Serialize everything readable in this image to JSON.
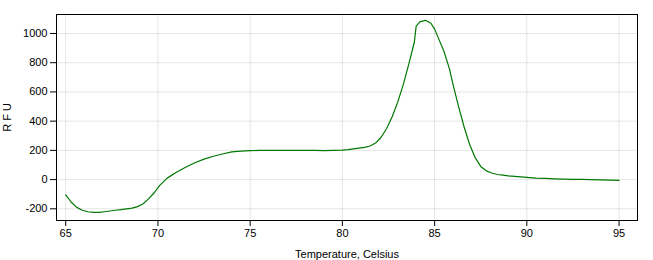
{
  "chart_data": {
    "type": "line",
    "xlabel": "Temperature, Celsius",
    "ylabel": "R F U",
    "x": [
      65.0,
      65.3,
      65.6,
      65.9,
      66.2,
      66.5,
      66.8,
      67.1,
      67.4,
      67.7,
      68.0,
      68.3,
      68.6,
      68.9,
      69.2,
      69.5,
      69.8,
      70.1,
      70.5,
      71.0,
      71.5,
      72.0,
      72.5,
      73.0,
      73.5,
      74.0,
      74.5,
      75.0,
      75.5,
      76.0,
      76.5,
      77.0,
      77.5,
      78.0,
      78.5,
      79.0,
      79.5,
      80.0,
      80.3,
      80.6,
      80.9,
      81.2,
      81.5,
      81.8,
      82.1,
      82.4,
      82.7,
      83.0,
      83.3,
      83.6,
      83.9,
      84.0,
      84.2,
      84.5,
      84.8,
      85.0,
      85.2,
      85.5,
      85.8,
      86.0,
      86.3,
      86.6,
      86.9,
      87.2,
      87.5,
      87.8,
      88.1,
      88.4,
      88.7,
      89.0,
      89.5,
      90.0,
      90.5,
      91.0,
      91.5,
      92.0,
      92.5,
      93.0,
      93.5,
      94.0,
      94.5,
      95.0
    ],
    "values": [
      -105,
      -155,
      -190,
      -210,
      -220,
      -225,
      -225,
      -220,
      -215,
      -210,
      -205,
      -200,
      -195,
      -185,
      -165,
      -130,
      -90,
      -40,
      10,
      50,
      85,
      115,
      140,
      160,
      175,
      190,
      195,
      198,
      200,
      200,
      200,
      200,
      200,
      200,
      200,
      198,
      200,
      202,
      205,
      210,
      215,
      220,
      230,
      250,
      290,
      350,
      430,
      530,
      650,
      790,
      940,
      1050,
      1080,
      1090,
      1070,
      1030,
      970,
      880,
      760,
      650,
      500,
      360,
      240,
      150,
      90,
      60,
      45,
      35,
      30,
      25,
      20,
      15,
      10,
      8,
      5,
      3,
      2,
      1,
      0,
      -2,
      -3,
      -5
    ],
    "color": "#007700",
    "xlim": [
      64.5,
      96
    ],
    "ylim": [
      -280,
      1130
    ],
    "xticks": [
      65,
      70,
      75,
      80,
      85,
      90,
      95
    ],
    "yticks": [
      -200,
      0,
      200,
      400,
      600,
      800,
      1000
    ],
    "grid": true
  }
}
